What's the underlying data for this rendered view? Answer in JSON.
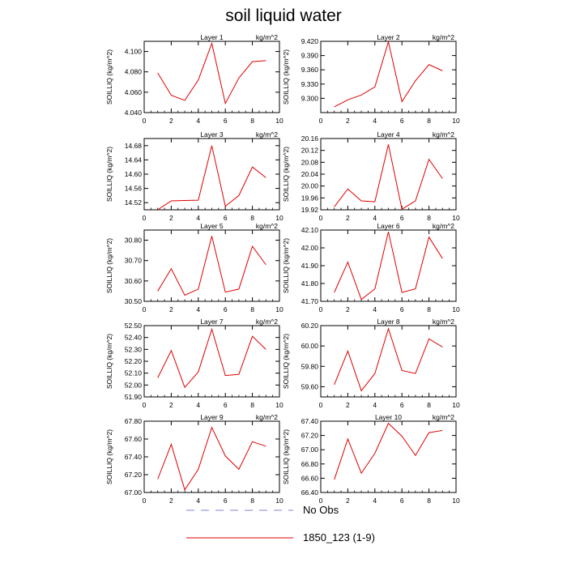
{
  "title": "soil liquid water",
  "legend": {
    "obs_label": "No Obs",
    "model_label": "1850_123 (1-9)",
    "obs_color": "#8080e0",
    "model_color": "#e00000"
  },
  "chart_data": [
    {
      "type": "line",
      "panel_title": "Layer 1",
      "units": "kg/m^2",
      "ylabel": "SOILLIQ  (kg/m^2)",
      "xlim": [
        0,
        10
      ],
      "xticks": [
        0,
        2,
        4,
        6,
        8,
        10
      ],
      "ylim": [
        4.04,
        4.11
      ],
      "yticks": [
        "4.040",
        "4.060",
        "4.080",
        "4.100"
      ],
      "x": [
        1,
        2,
        3,
        4,
        5,
        6,
        7,
        8,
        9
      ],
      "series": [
        {
          "name": "1850_123 (1-9)",
          "values": [
            4.079,
            4.057,
            4.052,
            4.072,
            4.108,
            4.049,
            4.074,
            4.09,
            4.091
          ]
        }
      ]
    },
    {
      "type": "line",
      "panel_title": "Layer 2",
      "units": "kg/m^2",
      "ylabel": "SOILLIQ  (kg/m^2)",
      "xlim": [
        0,
        10
      ],
      "xticks": [
        0,
        2,
        4,
        6,
        8,
        10
      ],
      "ylim": [
        9.27,
        9.42
      ],
      "yticks": [
        "9.300",
        "9.330",
        "9.360",
        "9.390",
        "9.420"
      ],
      "x": [
        1,
        2,
        3,
        4,
        5,
        6,
        7,
        8,
        9
      ],
      "series": [
        {
          "name": "1850_123 (1-9)",
          "values": [
            9.282,
            9.297,
            9.307,
            9.324,
            9.419,
            9.293,
            9.337,
            9.371,
            9.358
          ]
        }
      ]
    },
    {
      "type": "line",
      "panel_title": "Layer 3",
      "units": "kg/m^2",
      "ylabel": "SOILLIQ  (kg/m^2)",
      "xlim": [
        0,
        10
      ],
      "xticks": [
        0,
        2,
        4,
        6,
        8,
        10
      ],
      "ylim": [
        14.5,
        14.7
      ],
      "yticks": [
        "14.52",
        "14.56",
        "14.60",
        "14.64",
        "14.68"
      ],
      "x": [
        1,
        2,
        3,
        4,
        5,
        6,
        7,
        8,
        9
      ],
      "series": [
        {
          "name": "1850_123 (1-9)",
          "values": [
            14.5,
            14.525,
            14.526,
            14.527,
            14.68,
            14.51,
            14.54,
            14.62,
            14.59
          ]
        }
      ]
    },
    {
      "type": "line",
      "panel_title": "Layer 4",
      "units": "kg/m^2",
      "ylabel": "SOILLIQ  (kg/m^2)",
      "xlim": [
        0,
        10
      ],
      "xticks": [
        0,
        2,
        4,
        6,
        8,
        10
      ],
      "ylim": [
        19.92,
        20.16
      ],
      "yticks": [
        "19.92",
        "19.96",
        "20.00",
        "20.04",
        "20.08",
        "20.12",
        "20.16"
      ],
      "x": [
        1,
        2,
        3,
        4,
        5,
        6,
        7,
        8,
        9
      ],
      "series": [
        {
          "name": "1850_123 (1-9)",
          "values": [
            19.93,
            19.99,
            19.95,
            19.947,
            20.14,
            19.922,
            19.95,
            20.09,
            20.025
          ]
        }
      ]
    },
    {
      "type": "line",
      "panel_title": "Layer 5",
      "units": "kg/m^2",
      "ylabel": "SOILLIQ  (kg/m^2)",
      "xlim": [
        0,
        10
      ],
      "xticks": [
        0,
        2,
        4,
        6,
        8,
        10
      ],
      "ylim": [
        30.5,
        30.85
      ],
      "yticks": [
        "30.50",
        "30.60",
        "30.70",
        "30.80"
      ],
      "x": [
        1,
        2,
        3,
        4,
        5,
        6,
        7,
        8,
        9
      ],
      "series": [
        {
          "name": "1850_123 (1-9)",
          "values": [
            30.55,
            30.66,
            30.53,
            30.56,
            30.82,
            30.545,
            30.56,
            30.77,
            30.68
          ]
        }
      ]
    },
    {
      "type": "line",
      "panel_title": "Layer 6",
      "units": "kg/m^2",
      "ylabel": "SOILLIQ  (kg/m^2)",
      "xlim": [
        0,
        10
      ],
      "xticks": [
        0,
        2,
        4,
        6,
        8,
        10
      ],
      "ylim": [
        41.7,
        42.1
      ],
      "yticks": [
        "41.70",
        "41.80",
        "41.90",
        "42.00",
        "42.10"
      ],
      "x": [
        1,
        2,
        3,
        4,
        5,
        6,
        7,
        8,
        9
      ],
      "series": [
        {
          "name": "1850_123 (1-9)",
          "values": [
            41.75,
            41.92,
            41.71,
            41.77,
            42.09,
            41.75,
            41.77,
            42.06,
            41.94
          ]
        }
      ]
    },
    {
      "type": "line",
      "panel_title": "Layer 7",
      "units": "kg/m^2",
      "ylabel": "SOILLIQ  (kg/m^2)",
      "xlim": [
        0,
        10
      ],
      "xticks": [
        0,
        2,
        4,
        6,
        8,
        10
      ],
      "ylim": [
        51.9,
        52.5
      ],
      "yticks": [
        "51.90",
        "52.00",
        "52.10",
        "52.20",
        "52.30",
        "52.40",
        "52.50"
      ],
      "x": [
        1,
        2,
        3,
        4,
        5,
        6,
        7,
        8,
        9
      ],
      "series": [
        {
          "name": "1850_123 (1-9)",
          "values": [
            52.06,
            52.29,
            51.98,
            52.11,
            52.47,
            52.08,
            52.09,
            52.41,
            52.3
          ]
        }
      ]
    },
    {
      "type": "line",
      "panel_title": "Layer 8",
      "units": "kg/m^2",
      "ylabel": "SOILLIQ  (kg/m^2)",
      "xlim": [
        0,
        10
      ],
      "xticks": [
        0,
        2,
        4,
        6,
        8,
        10
      ],
      "ylim": [
        59.5,
        60.2
      ],
      "yticks": [
        "59.60",
        "59.80",
        "60.00",
        "60.20"
      ],
      "x": [
        1,
        2,
        3,
        4,
        5,
        6,
        7,
        8,
        9
      ],
      "series": [
        {
          "name": "1850_123 (1-9)",
          "values": [
            59.62,
            59.95,
            59.56,
            59.73,
            60.17,
            59.76,
            59.73,
            60.07,
            59.99
          ]
        }
      ]
    },
    {
      "type": "line",
      "panel_title": "Layer 9",
      "units": "kg/m^2",
      "ylabel": "SOILLIQ  (kg/m^2)",
      "xlim": [
        0,
        10
      ],
      "xticks": [
        0,
        2,
        4,
        6,
        8,
        10
      ],
      "ylim": [
        67.0,
        67.8
      ],
      "yticks": [
        "67.00",
        "67.20",
        "67.40",
        "67.60",
        "67.80"
      ],
      "x": [
        1,
        2,
        3,
        4,
        5,
        6,
        7,
        8,
        9
      ],
      "series": [
        {
          "name": "1850_123 (1-9)",
          "values": [
            67.15,
            67.54,
            67.03,
            67.26,
            67.73,
            67.41,
            67.26,
            67.57,
            67.52
          ]
        }
      ]
    },
    {
      "type": "line",
      "panel_title": "Layer 10",
      "units": "kg/m^2",
      "ylabel": "SOILLIQ  (kg/m^2)",
      "xlim": [
        0,
        10
      ],
      "xticks": [
        0,
        2,
        4,
        6,
        8,
        10
      ],
      "ylim": [
        66.4,
        67.4
      ],
      "yticks": [
        "66.40",
        "66.60",
        "66.80",
        "67.00",
        "67.20",
        "67.40"
      ],
      "x": [
        1,
        2,
        3,
        4,
        5,
        6,
        7,
        8,
        9
      ],
      "series": [
        {
          "name": "1850_123 (1-9)",
          "values": [
            66.58,
            67.15,
            66.67,
            66.95,
            67.37,
            67.19,
            66.92,
            67.24,
            67.27
          ]
        }
      ]
    }
  ]
}
